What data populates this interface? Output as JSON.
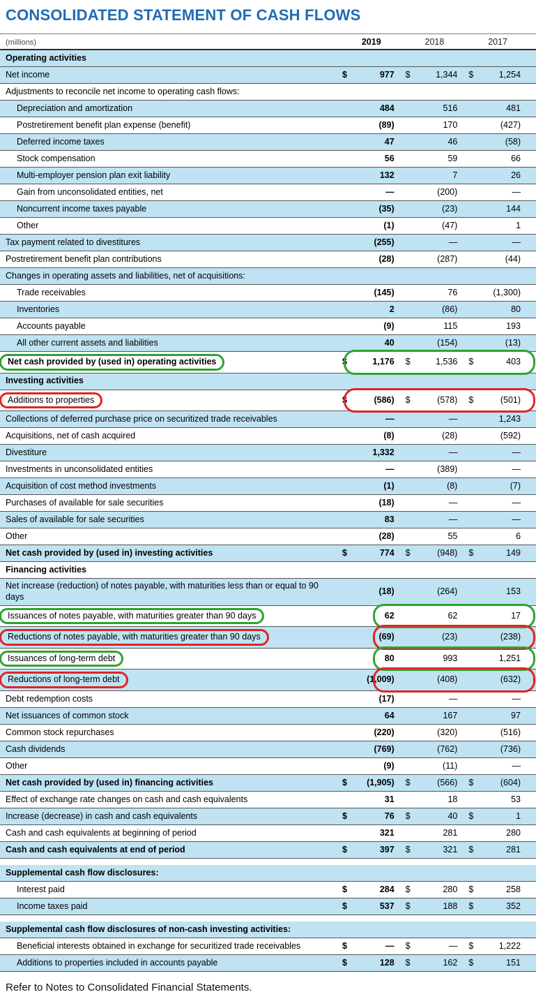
{
  "title": "CONSOLIDATED STATEMENT OF CASH FLOWS",
  "footnote": "Refer to Notes to Consolidated Financial Statements.",
  "colors": {
    "accent_blue": "#1f6cb5",
    "row_shade": "#bfe3f2",
    "annotation_green": "#2ca430",
    "annotation_red": "#e02424"
  },
  "table": {
    "unit_label": "(millions)",
    "columns": [
      "2019",
      "2018",
      "2017"
    ],
    "rows": [
      {
        "label": "Operating activities",
        "bold": true,
        "shaded": true
      },
      {
        "label": "Net income",
        "shaded": true,
        "dollar": true,
        "values": [
          "977",
          "1,344",
          "1,254"
        ]
      },
      {
        "label": "Adjustments to reconcile net income to operating cash flows:",
        "shaded": false
      },
      {
        "label": "Depreciation and amortization",
        "indent": 1,
        "shaded": true,
        "values": [
          "484",
          "516",
          "481"
        ]
      },
      {
        "label": "Postretirement benefit plan expense (benefit)",
        "indent": 1,
        "shaded": false,
        "values": [
          "(89)",
          "170",
          "(427)"
        ]
      },
      {
        "label": "Deferred income taxes",
        "indent": 1,
        "shaded": true,
        "values": [
          "47",
          "46",
          "(58)"
        ]
      },
      {
        "label": "Stock compensation",
        "indent": 1,
        "shaded": false,
        "values": [
          "56",
          "59",
          "66"
        ]
      },
      {
        "label": "Multi-employer pension plan exit liability",
        "indent": 1,
        "shaded": true,
        "values": [
          "132",
          "7",
          "26"
        ]
      },
      {
        "label": "Gain from unconsolidated entities, net",
        "indent": 1,
        "shaded": false,
        "values": [
          "—",
          "(200)",
          "—"
        ]
      },
      {
        "label": "Noncurrent income taxes payable",
        "indent": 1,
        "shaded": true,
        "values": [
          "(35)",
          "(23)",
          "144"
        ]
      },
      {
        "label": "Other",
        "indent": 1,
        "shaded": false,
        "values": [
          "(1)",
          "(47)",
          "1"
        ]
      },
      {
        "label": "Tax payment related to divestitures",
        "shaded": true,
        "values": [
          "(255)",
          "—",
          "—"
        ]
      },
      {
        "label": "Postretirement benefit plan contributions",
        "shaded": false,
        "values": [
          "(28)",
          "(287)",
          "(44)"
        ]
      },
      {
        "label": "Changes in operating assets and liabilities, net of acquisitions:",
        "shaded": true
      },
      {
        "label": "Trade receivables",
        "indent": 1,
        "shaded": false,
        "values": [
          "(145)",
          "76",
          "(1,300)"
        ]
      },
      {
        "label": "Inventories",
        "indent": 1,
        "shaded": true,
        "values": [
          "2",
          "(86)",
          "80"
        ]
      },
      {
        "label": "Accounts payable",
        "indent": 1,
        "shaded": false,
        "values": [
          "(9)",
          "115",
          "193"
        ]
      },
      {
        "label": "All other current assets and liabilities",
        "indent": 1,
        "shaded": true,
        "values": [
          "40",
          "(154)",
          "(13)"
        ]
      },
      {
        "label": "Net cash provided by (used in) operating activities",
        "bold": true,
        "shaded": false,
        "dollar": true,
        "values": [
          "1,176",
          "1,536",
          "403"
        ],
        "ann": "green"
      },
      {
        "label": "Investing activities",
        "bold": true,
        "shaded": true
      },
      {
        "label": "Additions to properties",
        "shaded": false,
        "dollar": true,
        "values": [
          "(586)",
          "(578)",
          "(501)"
        ],
        "ann": "red"
      },
      {
        "label": "Collections of deferred purchase price on securitized trade receivables",
        "shaded": true,
        "values": [
          "—",
          "—",
          "1,243"
        ]
      },
      {
        "label": "Acquisitions, net of cash acquired",
        "shaded": false,
        "values": [
          "(8)",
          "(28)",
          "(592)"
        ]
      },
      {
        "label": "Divestiture",
        "shaded": true,
        "values": [
          "1,332",
          "—",
          "—"
        ]
      },
      {
        "label": "Investments in unconsolidated entities",
        "shaded": false,
        "values": [
          "—",
          "(389)",
          "—"
        ]
      },
      {
        "label": "Acquisition of cost method investments",
        "shaded": true,
        "values": [
          "(1)",
          "(8)",
          "(7)"
        ]
      },
      {
        "label": "Purchases of available for sale securities",
        "shaded": false,
        "values": [
          "(18)",
          "—",
          "—"
        ]
      },
      {
        "label": "Sales of available for sale securities",
        "shaded": true,
        "values": [
          "83",
          "—",
          "—"
        ]
      },
      {
        "label": "Other",
        "shaded": false,
        "values": [
          "(28)",
          "55",
          "6"
        ]
      },
      {
        "label": "Net cash provided by (used in) investing activities",
        "bold": true,
        "shaded": true,
        "dollar": true,
        "values": [
          "774",
          "(948)",
          "149"
        ]
      },
      {
        "label": "Financing activities",
        "bold": true,
        "shaded": false
      },
      {
        "label": "Net increase (reduction) of notes payable, with maturities less than or equal to 90 days",
        "shaded": true,
        "values": [
          "(18)",
          "(264)",
          "153"
        ]
      },
      {
        "label": "Issuances of notes payable, with maturities greater than 90 days",
        "shaded": false,
        "values": [
          "62",
          "62",
          "17"
        ],
        "ann": "green"
      },
      {
        "label": "Reductions of notes payable, with maturities greater than 90 days",
        "shaded": true,
        "values": [
          "(69)",
          "(23)",
          "(238)"
        ],
        "ann": "red"
      },
      {
        "label": "Issuances of long-term debt",
        "shaded": false,
        "values": [
          "80",
          "993",
          "1,251"
        ],
        "ann": "green"
      },
      {
        "label": "Reductions of long-term debt",
        "shaded": true,
        "values": [
          "(1,009)",
          "(408)",
          "(632)"
        ],
        "ann": "red"
      },
      {
        "label": "Debt redemption costs",
        "shaded": false,
        "values": [
          "(17)",
          "—",
          "—"
        ]
      },
      {
        "label": "Net issuances of common stock",
        "shaded": true,
        "values": [
          "64",
          "167",
          "97"
        ]
      },
      {
        "label": "Common stock repurchases",
        "shaded": false,
        "values": [
          "(220)",
          "(320)",
          "(516)"
        ]
      },
      {
        "label": "Cash dividends",
        "shaded": true,
        "values": [
          "(769)",
          "(762)",
          "(736)"
        ]
      },
      {
        "label": "Other",
        "shaded": false,
        "values": [
          "(9)",
          "(11)",
          "—"
        ]
      },
      {
        "label": "Net cash provided by (used in) financing activities",
        "bold": true,
        "shaded": true,
        "dollar": true,
        "values": [
          "(1,905)",
          "(566)",
          "(604)"
        ]
      },
      {
        "label": "Effect of exchange rate changes on cash and cash equivalents",
        "shaded": false,
        "values": [
          "31",
          "18",
          "53"
        ]
      },
      {
        "label": "Increase (decrease) in cash and cash equivalents",
        "shaded": true,
        "dollar": true,
        "values": [
          "76",
          "40",
          "1"
        ]
      },
      {
        "label": "Cash and cash equivalents at beginning of period",
        "shaded": false,
        "values": [
          "321",
          "281",
          "280"
        ]
      },
      {
        "label": "Cash and cash equivalents at end of period",
        "bold": true,
        "shaded": true,
        "dollar": true,
        "values": [
          "397",
          "321",
          "281"
        ]
      },
      {
        "type": "spacer"
      },
      {
        "label": "Supplemental cash flow disclosures:",
        "bold": true,
        "shaded": true
      },
      {
        "label": "Interest paid",
        "indent": 1,
        "shaded": false,
        "dollar": true,
        "values": [
          "284",
          "280",
          "258"
        ]
      },
      {
        "label": "Income taxes paid",
        "indent": 1,
        "shaded": true,
        "dollar": true,
        "values": [
          "537",
          "188",
          "352"
        ]
      },
      {
        "type": "spacer"
      },
      {
        "label": "Supplemental cash flow disclosures of non-cash investing activities:",
        "bold": true,
        "shaded": true
      },
      {
        "label": "Beneficial interests obtained in exchange for securitized trade receivables",
        "indent": 1,
        "shaded": false,
        "dollar": true,
        "values": [
          "—",
          "—",
          "1,222"
        ]
      },
      {
        "label": "Additions to properties included in accounts payable",
        "indent": 1,
        "shaded": true,
        "dollar": true,
        "values": [
          "128",
          "162",
          "151"
        ]
      }
    ]
  }
}
